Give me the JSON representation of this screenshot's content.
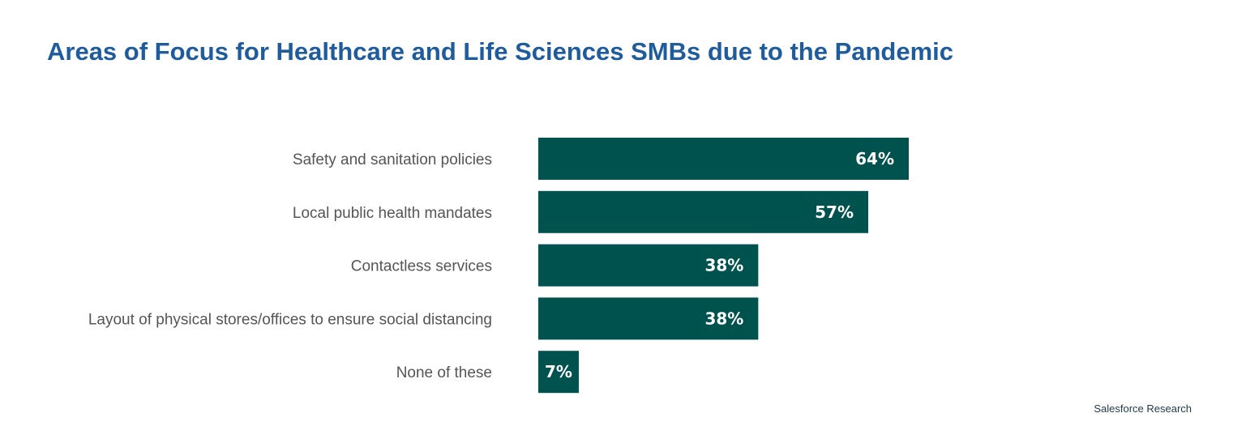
{
  "chart_data": {
    "type": "bar",
    "orientation": "horizontal",
    "title": "Areas of Focus for Healthcare and Life Sciences SMBs due to the Pandemic",
    "categories": [
      "Safety and sanitation policies",
      "Local public health mandates",
      "Contactless services",
      "Layout of physical stores/offices to ensure social distancing",
      "None of these"
    ],
    "values": [
      64,
      57,
      38,
      38,
      7
    ],
    "value_labels": [
      "64%",
      "57%",
      "38%",
      "38%",
      "7%"
    ],
    "xlabel": "",
    "ylabel": "",
    "xlim": [
      0,
      100
    ],
    "grid": false,
    "source": "Salesforce Research",
    "colors": {
      "bar": "#00524f",
      "title": "#1f5c9e",
      "label": "#555555"
    }
  }
}
